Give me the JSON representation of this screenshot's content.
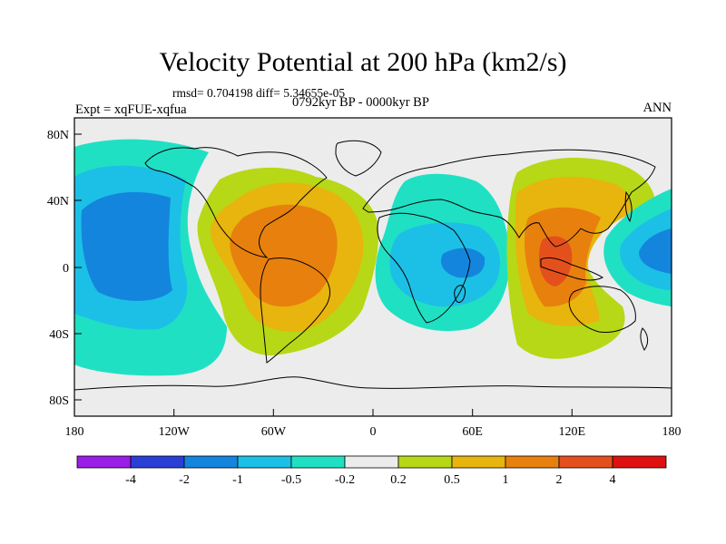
{
  "title": "Velocity Potential at 200 hPa (km2/s)",
  "stats_line": "rmsd= 0.704198 diff= 5.34655e-05",
  "experiment_label": "Expt = xqFUE-xqfua",
  "period_label": "0792kyr BP - 0000kyr BP",
  "season_label": "ANN",
  "axes": {
    "lat_labels": [
      "80N",
      "40N",
      "0",
      "40S",
      "80S"
    ],
    "lon_labels": [
      "180",
      "120W",
      "60W",
      "0",
      "60E",
      "120E",
      "180"
    ]
  },
  "colorbar": {
    "labels": [
      "-4",
      "-2",
      "-1",
      "-0.5",
      "-0.2",
      "0.2",
      "0.5",
      "1",
      "2",
      "4"
    ],
    "colors": [
      "#9a1de8",
      "#2a3fd6",
      "#1485dd",
      "#1cc0e6",
      "#20e0c4",
      "#ececec",
      "#b6d816",
      "#e8b40e",
      "#e8800e",
      "#e4501c",
      "#de1010"
    ]
  },
  "colors": {
    "background": "#ececec",
    "coast": "#000000"
  }
}
